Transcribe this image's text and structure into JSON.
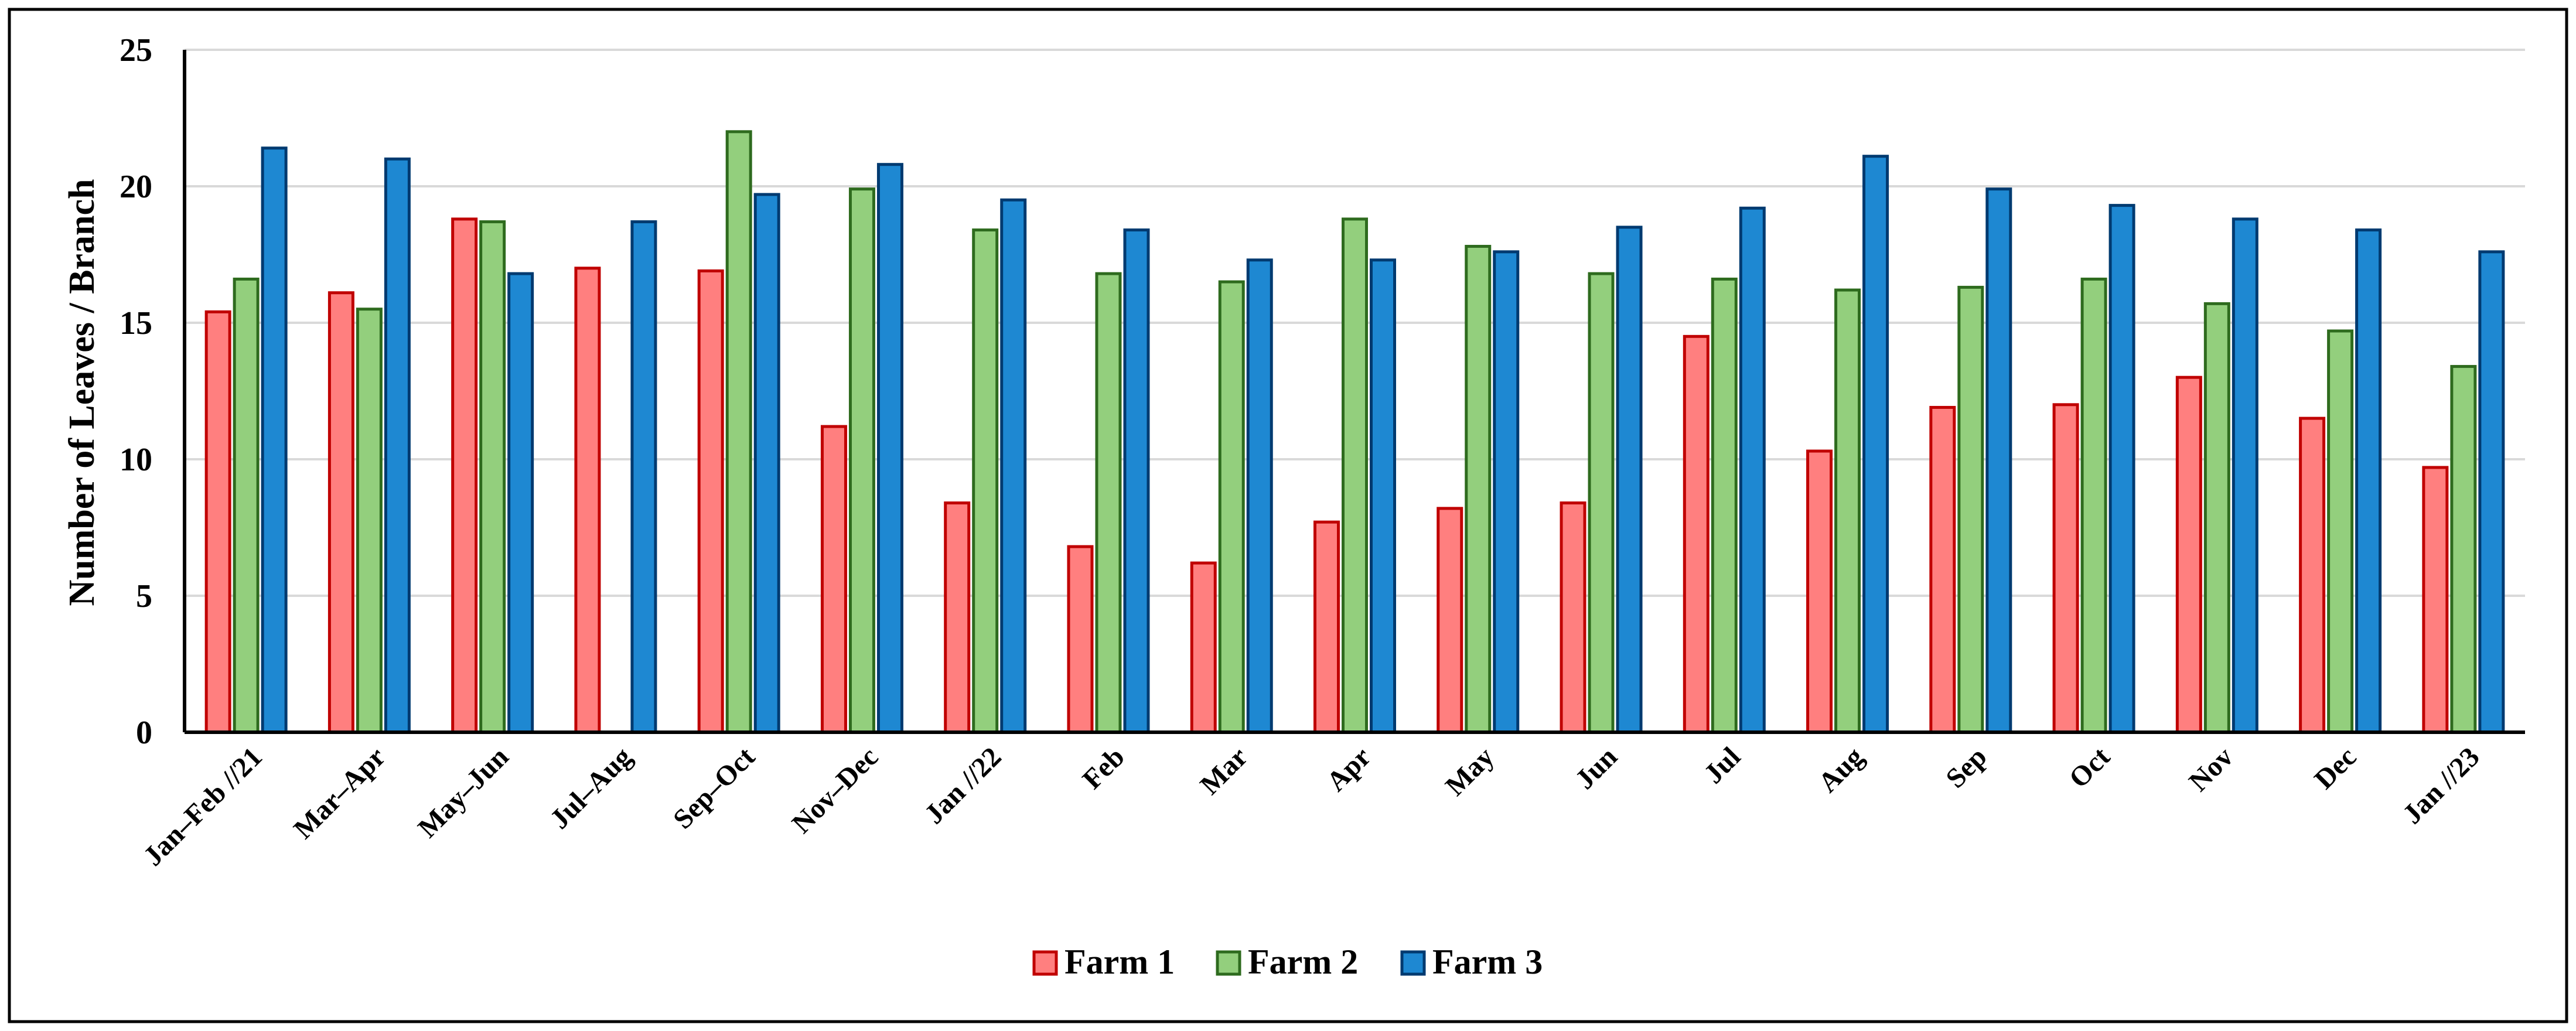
{
  "chart_data": {
    "type": "bar",
    "title": "",
    "xlabel": "",
    "ylabel": "Number of Leaves / Branch",
    "ylim": [
      0,
      25
    ],
    "yticks": [
      0,
      5,
      10,
      15,
      20,
      25
    ],
    "grid": true,
    "legend_position": "bottom-center",
    "categories": [
      "Jan–Feb //21",
      "Mar–Apr",
      "May–Jun",
      "Jul–Aug",
      "Sep–Oct",
      "Nov–Dec",
      "Jan //22",
      "Feb",
      "Mar",
      "Apr",
      "May",
      "Jun",
      "Jul",
      "Aug",
      "Sep",
      "Oct",
      "Nov",
      "Dec",
      "Jan //23"
    ],
    "series": [
      {
        "name": "Farm 1",
        "fill": "#ff7f7f",
        "stroke": "#c00000",
        "values": [
          15.4,
          16.1,
          18.8,
          17.0,
          16.9,
          11.2,
          8.4,
          6.8,
          6.2,
          7.7,
          8.2,
          8.4,
          14.5,
          10.3,
          11.9,
          12.0,
          13.0,
          11.5,
          9.7
        ]
      },
      {
        "name": "Farm 2",
        "fill": "#93cf7d",
        "stroke": "#2e6b1e",
        "values": [
          16.6,
          15.5,
          18.7,
          null,
          22.0,
          19.9,
          18.4,
          16.8,
          16.5,
          18.8,
          17.8,
          16.8,
          16.6,
          16.2,
          16.3,
          16.6,
          15.7,
          14.7,
          13.4
        ]
      },
      {
        "name": "Farm 3",
        "fill": "#1e88d2",
        "stroke": "#003a70",
        "values": [
          21.4,
          21.0,
          16.8,
          18.7,
          19.7,
          20.8,
          19.5,
          18.4,
          17.3,
          17.3,
          17.6,
          18.5,
          19.2,
          21.1,
          19.9,
          19.3,
          18.8,
          18.4,
          17.6
        ]
      }
    ]
  }
}
